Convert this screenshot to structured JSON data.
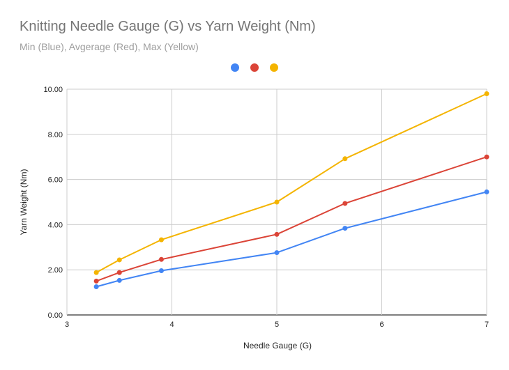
{
  "chart_data": {
    "type": "line",
    "title": "Knitting Needle Gauge (G) vs Yarn Weight (Nm)",
    "subtitle": "Min (Blue), Avgerage (Red), Max (Yellow)",
    "xlabel": "Needle Gauge (G)",
    "ylabel": "Yarn Weight (Nm)",
    "xlim": [
      3,
      7
    ],
    "ylim": [
      0,
      10
    ],
    "xticks": [
      "3",
      "4",
      "5",
      "6",
      "7"
    ],
    "yticks": [
      "0.00",
      "2.00",
      "4.00",
      "6.00",
      "8.00",
      "10.00"
    ],
    "grid": true,
    "legend_position": "top-center",
    "x": [
      3.28,
      3.5,
      3.9,
      5.0,
      5.65,
      7.0
    ],
    "series": [
      {
        "color": "#4285f4",
        "values": [
          1.25,
          1.53,
          1.96,
          2.76,
          3.84,
          5.45
        ]
      },
      {
        "color": "#db4437",
        "values": [
          1.5,
          1.88,
          2.46,
          3.57,
          4.94,
          7.0
        ]
      },
      {
        "color": "#f4b400",
        "values": [
          1.88,
          2.44,
          3.33,
          5.0,
          6.92,
          9.8
        ]
      }
    ]
  }
}
